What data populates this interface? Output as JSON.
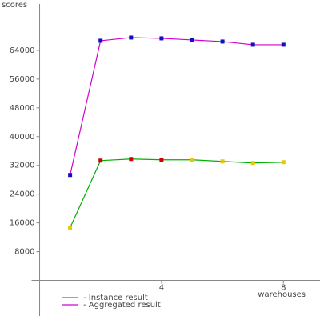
{
  "chart_data": {
    "type": "line",
    "y_label": "scores",
    "x_label": "warehouses",
    "x": [
      1,
      2,
      3,
      4,
      5,
      6,
      7,
      8
    ],
    "xlim": [
      -1.3,
      9.2
    ],
    "xticks": [
      4,
      8
    ],
    "ylim": [
      -11000,
      78000
    ],
    "yticks": [
      8000,
      16000,
      24000,
      32000,
      40000,
      48000,
      56000,
      64000
    ],
    "series": [
      {
        "name": "- Instance result",
        "color": "#00b000",
        "values": [
          14667,
          33333,
          33778,
          33556,
          33556,
          33111,
          32667,
          32889
        ],
        "marker_colors": [
          "#e8c800",
          "#d00000",
          "#d00000",
          "#d00000",
          "#e8c800",
          "#e8c800",
          "#e8c800",
          "#e8c800"
        ]
      },
      {
        "name": "- Aggregated result",
        "color": "#d000d0",
        "values": [
          29333,
          66667,
          67556,
          67333,
          66889,
          66444,
          65556,
          65556
        ],
        "marker_colors": [
          "#1010c0",
          "#1010c0",
          "#1010c0",
          "#1010c0",
          "#1010c0",
          "#1010c0",
          "#1010c0",
          "#1010c0"
        ]
      }
    ]
  }
}
